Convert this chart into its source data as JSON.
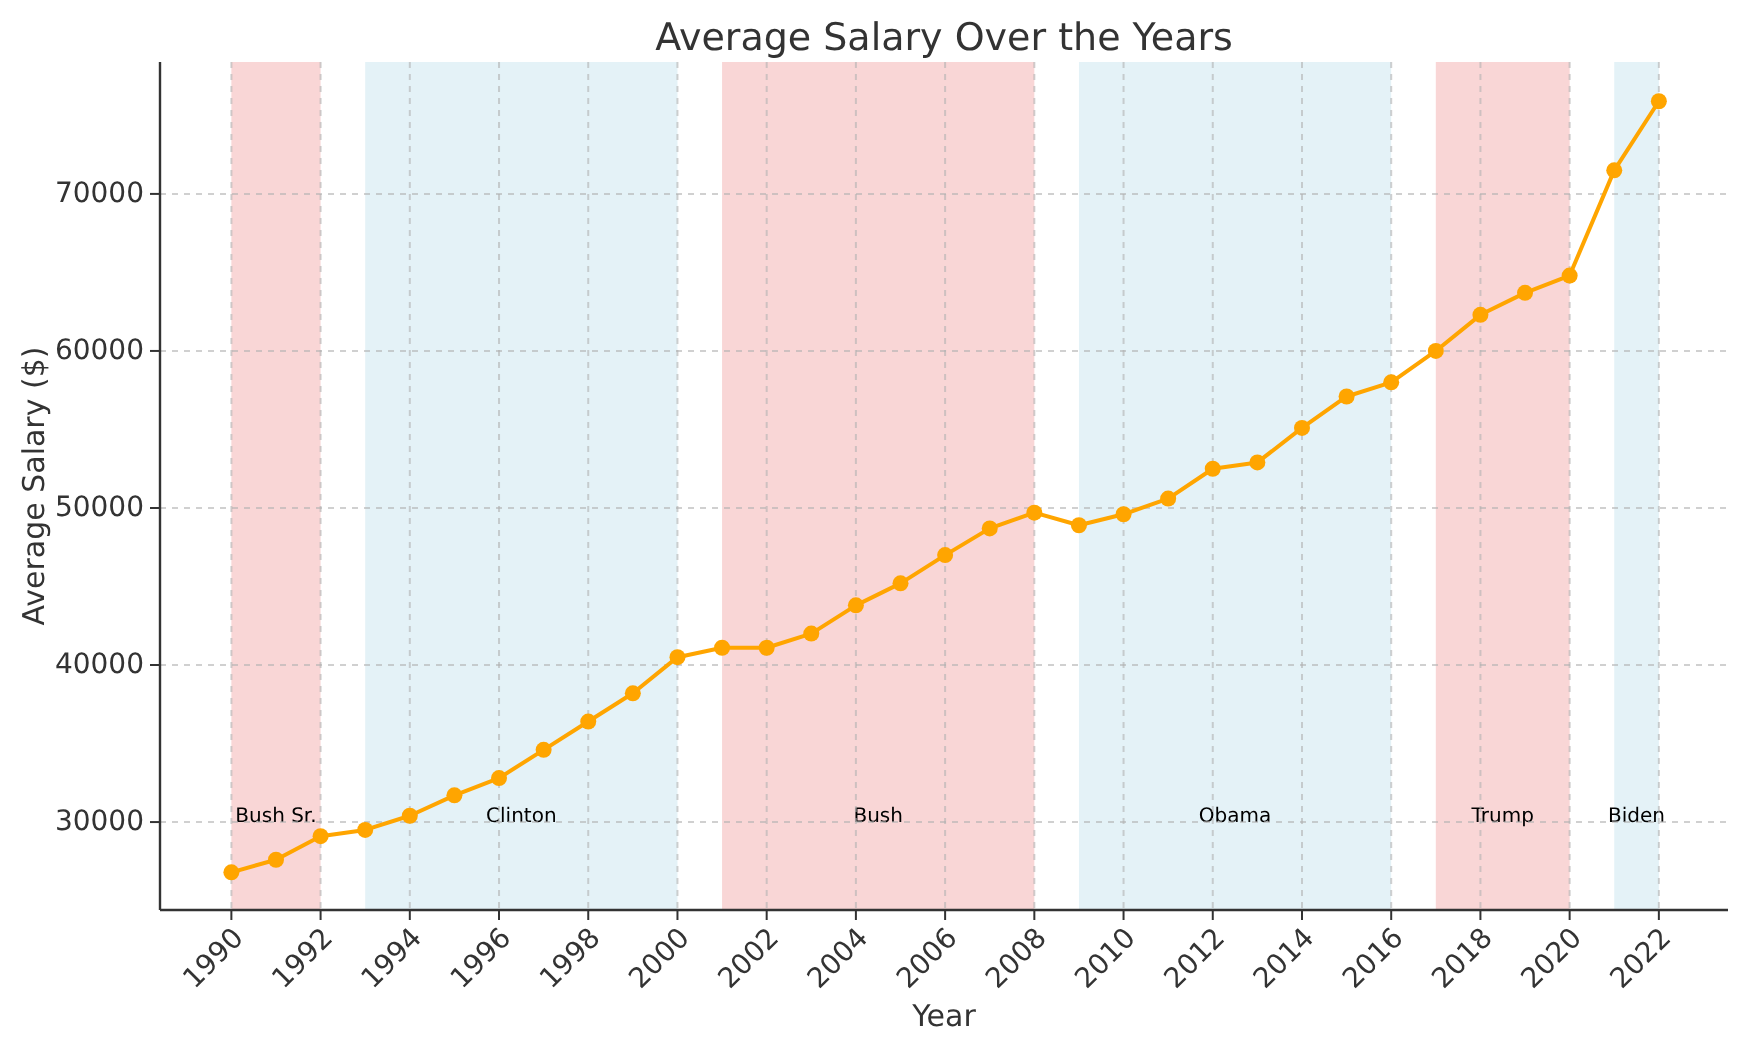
{
  "chart_data": {
    "type": "line",
    "title": "Average Salary Over the Years",
    "xlabel": "Year",
    "ylabel": "Average Salary ($)",
    "x": [
      1990,
      1991,
      1992,
      1993,
      1994,
      1995,
      1996,
      1997,
      1998,
      1999,
      2000,
      2001,
      2002,
      2003,
      2004,
      2005,
      2006,
      2007,
      2008,
      2009,
      2010,
      2011,
      2012,
      2013,
      2014,
      2015,
      2016,
      2017,
      2018,
      2019,
      2020,
      2021,
      2022
    ],
    "series": [
      {
        "color": "#ffa500",
        "values": [
          26800,
          27600,
          29100,
          29500,
          30400,
          31700,
          32800,
          34600,
          36400,
          38200,
          40500,
          41100,
          41100,
          42000,
          43800,
          45200,
          47000,
          48700,
          49700,
          48900,
          49600,
          50600,
          52500,
          52900,
          55100,
          57100,
          58000,
          60000,
          62300,
          63700,
          64800,
          71500,
          75900
        ]
      }
    ],
    "xlim": [
      1988.4,
      2023.55
    ],
    "ylim": [
      24400,
      78400
    ],
    "xticks": [
      1990,
      1992,
      1994,
      1996,
      1998,
      2000,
      2002,
      2004,
      2006,
      2008,
      2010,
      2012,
      2014,
      2016,
      2018,
      2020,
      2022
    ],
    "yticks": [
      30000,
      40000,
      50000,
      60000,
      70000
    ],
    "bands": [
      {
        "axis": "x",
        "from": 1990,
        "to": 1992,
        "label": "Bush Sr.",
        "color": "#f9d6d6"
      },
      {
        "axis": "x",
        "from": 1993,
        "to": 2000,
        "label": "Clinton",
        "color": "#e4f2f7"
      },
      {
        "axis": "x",
        "from": 2001,
        "to": 2008,
        "label": "Bush",
        "color": "#f9d6d6"
      },
      {
        "axis": "x",
        "from": 2009,
        "to": 2016,
        "label": "Obama",
        "color": "#e4f2f7"
      },
      {
        "axis": "x",
        "from": 2017,
        "to": 2020,
        "label": "Trump",
        "color": "#f9d6d6"
      },
      {
        "axis": "x",
        "from": 2021,
        "to": 2022,
        "label": "Biden",
        "color": "#e4f2f7"
      }
    ],
    "grid": true,
    "marker": "circle",
    "line_style": "solid"
  }
}
